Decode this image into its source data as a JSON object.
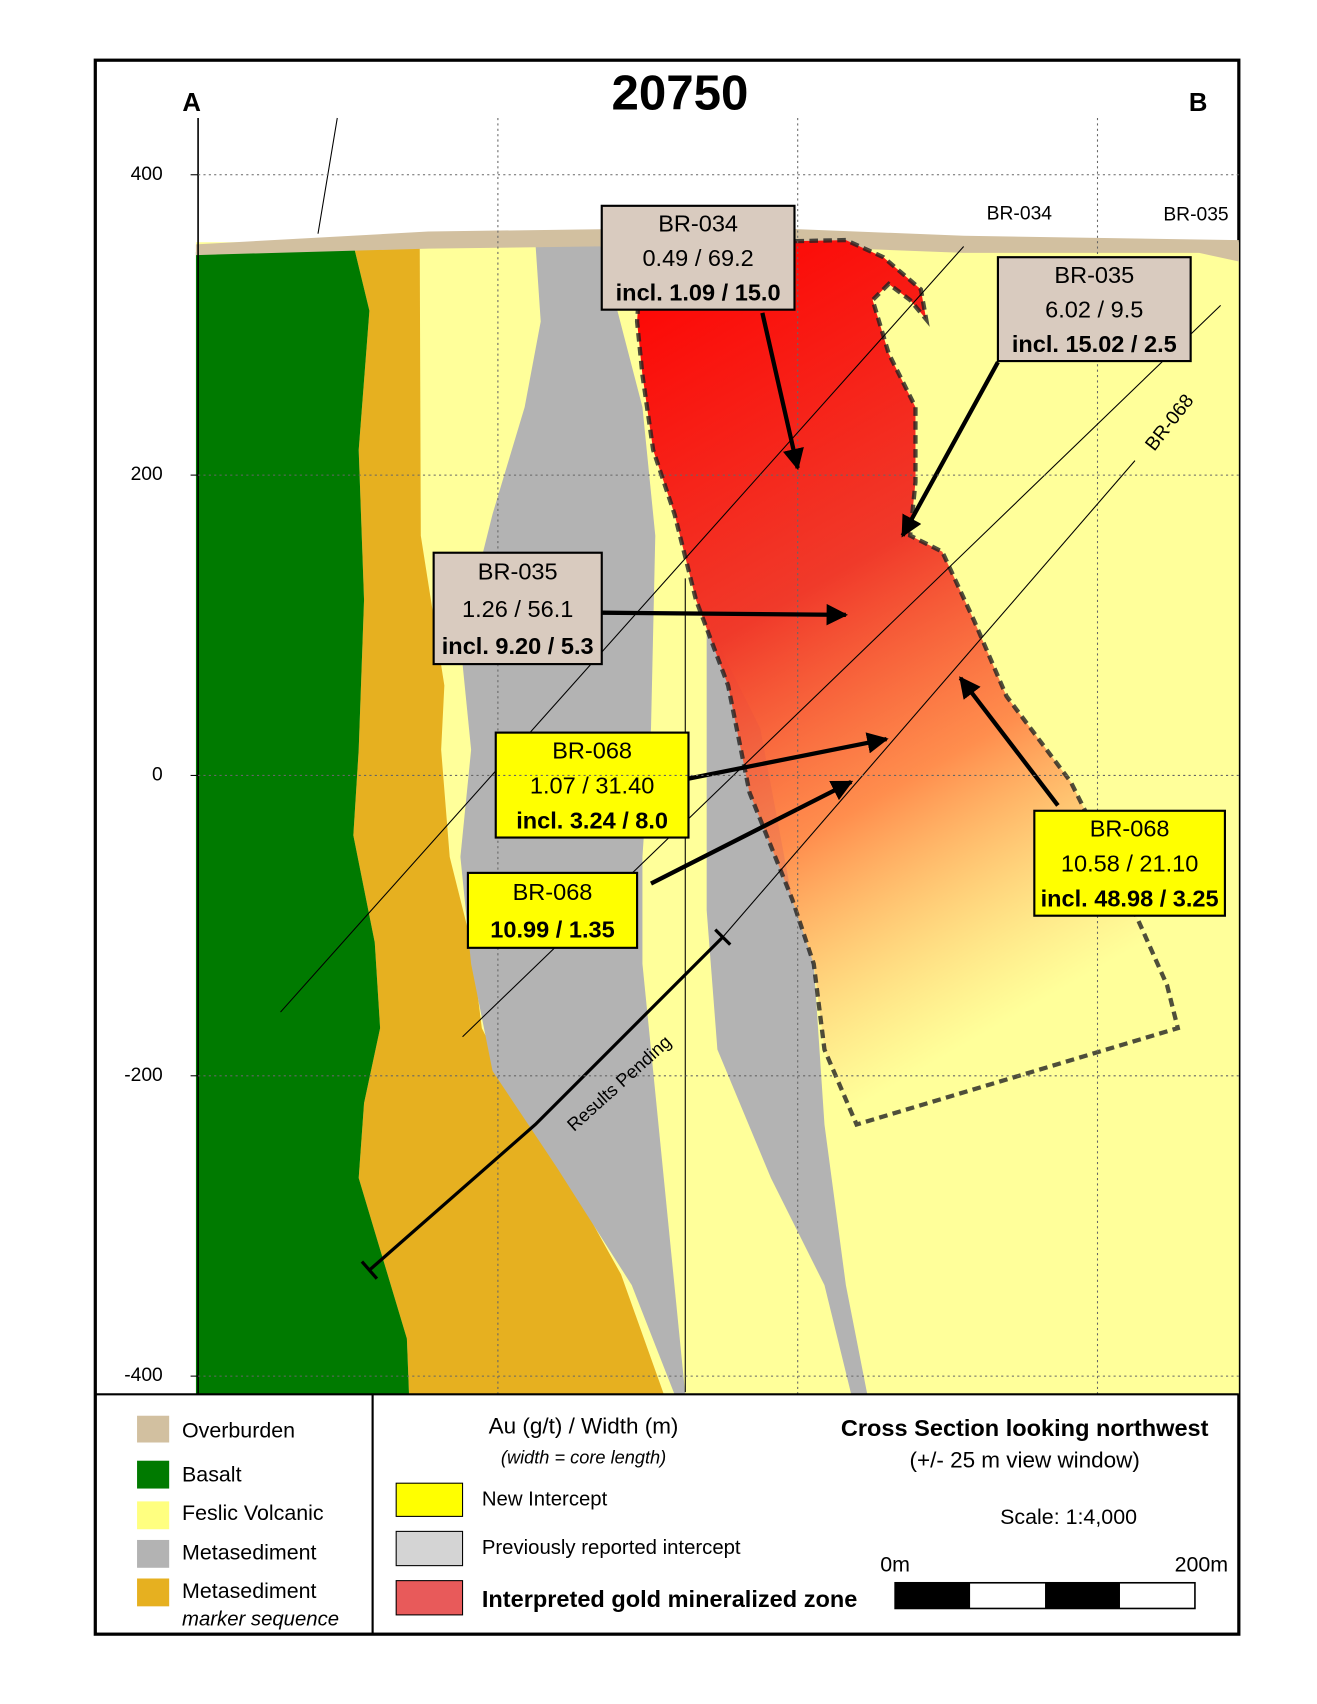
{
  "title": "20750",
  "section_ends": [
    "A",
    "B"
  ],
  "axis": {
    "yticks": [
      400,
      200,
      0,
      -200,
      -400
    ]
  },
  "drillhole_labels": [
    "BR-034",
    "BR-035",
    "BR-068"
  ],
  "results_pending": "Results Pending",
  "callouts": [
    {
      "hole": "BR-034",
      "result": "0.49 / 69.2",
      "incl": "incl. 1.09 / 15.0"
    },
    {
      "hole": "BR-035",
      "result": "6.02 / 9.5",
      "incl": "incl. 15.02 / 2.5"
    },
    {
      "hole": "BR-035",
      "result": "1.26 / 56.1",
      "incl": "incl. 9.20 / 5.3"
    },
    {
      "hole": "BR-068",
      "result": "1.07 / 31.40",
      "incl": "incl. 3.24 / 8.0"
    },
    {
      "hole": "BR-068",
      "result": "10.99 / 1.35"
    },
    {
      "hole": "BR-068",
      "result": "10.58 / 21.10",
      "incl": "incl. 48.98 / 3.25"
    }
  ],
  "legend": {
    "units": [
      "Overburden",
      "Basalt",
      "Feslic Volcanic",
      "Metasediment",
      "Metasediment"
    ],
    "marker_note": "marker sequence"
  },
  "key": {
    "heading": "Au (g/t) / Width (m)",
    "note": "(width = core length)",
    "items": [
      "New Intercept",
      "Previously reported  intercept",
      "Interpreted gold mineralized zone"
    ]
  },
  "info": {
    "title": "Cross Section looking northwest",
    "window": "(+/- 25 m view window)",
    "scale": "Scale: 1:4,000",
    "bar_start": "0m",
    "bar_end": "200m"
  }
}
